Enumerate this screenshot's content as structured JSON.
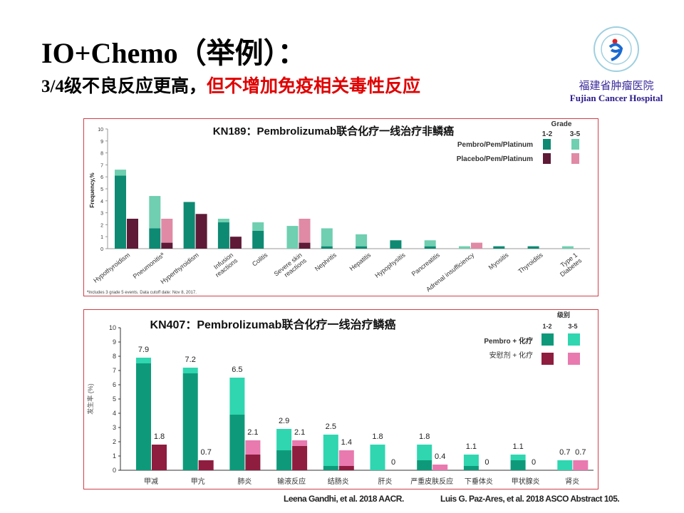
{
  "slide": {
    "title": "IO+Chemo（举例）：",
    "subtitle_black": "3/4级不良反应更高，",
    "subtitle_red": "但不增加免疫相关毒性反应",
    "logo": {
      "name_cn": "福建省肿瘤医院",
      "name_en": "Fujian Cancer Hospital",
      "seal_text": "福建省肿瘤医院"
    },
    "references": [
      "Leena Gandhi, et al. 2018 AACR.",
      "Luis G. Paz-Ares, et al. 2018 ASCO Abstract 105."
    ]
  },
  "chart_data": [
    {
      "type": "bar",
      "stacked": "grouped-stacked",
      "title": "KN189：Pembrolizumab联合化疗一线治疗非鳞癌",
      "ylabel": "Frequency,%",
      "ylim": [
        0,
        10
      ],
      "yticks": [
        "0",
        "1",
        "2",
        "3",
        "4",
        "5",
        "6",
        "7",
        "8",
        "9",
        "10"
      ],
      "legend_title": "Grade",
      "legend_grades": [
        "1-2",
        "3-5"
      ],
      "footnote": "ªIncludes 3 grade 5 events. Data cutoff date: Nov 8, 2017.",
      "categories": [
        "Hypothyroidism",
        "Pneumonitisª",
        "Hyperthyroidism",
        "Infusion reactions",
        "Colitis",
        "Severe skin reactions",
        "Nephritis",
        "Hepatitis",
        "Hypophysitis",
        "Pancreatitis",
        "Adrenal insufficiency",
        "Myositis",
        "Thyroiditis",
        "Type 1 Diabetes"
      ],
      "series": [
        {
          "name": "Pembro/Pem/Platinum",
          "grade_1_2": [
            6.1,
            1.7,
            3.9,
            2.2,
            1.5,
            0,
            0.2,
            0.2,
            0.7,
            0.2,
            0,
            0.2,
            0.2,
            0
          ],
          "grade_3_5": [
            0.5,
            2.7,
            0,
            0.3,
            0.7,
            1.9,
            1.5,
            1.0,
            0,
            0.5,
            0.2,
            0,
            0,
            0.2
          ],
          "colors": [
            "#0e8a73",
            "#6fcfb0"
          ]
        },
        {
          "name": "Placebo/Pem/Platinum",
          "grade_1_2": [
            2.5,
            0.5,
            2.9,
            1.0,
            0,
            0.5,
            0,
            0,
            0,
            0,
            0,
            0,
            0,
            0
          ],
          "grade_3_5": [
            0,
            2.0,
            0,
            0,
            0,
            2.0,
            0,
            0,
            0,
            0,
            0.5,
            0,
            0,
            0
          ],
          "colors": [
            "#5e1a36",
            "#e08aa6"
          ]
        }
      ]
    },
    {
      "type": "bar",
      "stacked": "grouped-stacked",
      "title": "KN407：Pembrolizumab联合化疗一线治疗鳞癌",
      "ylabel": "发生率 (%)",
      "ylim": [
        0,
        10
      ],
      "yticks": [
        "0",
        "1",
        "2",
        "3",
        "4",
        "5",
        "6",
        "7",
        "8",
        "9",
        "10"
      ],
      "legend_title": "级别",
      "legend_grades": [
        "1-2",
        "3-5"
      ],
      "categories": [
        "甲减",
        "甲亢",
        "肺炎",
        "输液反应",
        "结肠炎",
        "肝炎",
        "严重皮肤反应",
        "下垂体炎",
        "甲状腺炎",
        "肾炎"
      ],
      "series": [
        {
          "name": "Pembro + 化疗",
          "totals": [
            "7.9",
            "7.2",
            "6.5",
            "2.9",
            "2.5",
            "1.8",
            "1.8",
            "1.1",
            "1.1",
            "0.7"
          ],
          "grade_1_2": [
            7.5,
            6.8,
            3.9,
            1.4,
            0.3,
            0,
            0.7,
            0.3,
            0.7,
            0
          ],
          "grade_3_5": [
            0.4,
            0.4,
            2.6,
            1.5,
            2.2,
            1.8,
            1.1,
            0.8,
            0.4,
            0.7
          ],
          "colors": [
            "#0e9a7a",
            "#2fd6b0"
          ]
        },
        {
          "name": "安慰剂 + 化疗",
          "totals": [
            "1.8",
            "0.7",
            "2.1",
            "2.1",
            "1.4",
            "0",
            "0.4",
            "0",
            "0",
            "0.7"
          ],
          "grade_1_2": [
            1.8,
            0.7,
            1.1,
            1.7,
            0.3,
            0,
            0,
            0,
            0,
            0
          ],
          "grade_3_5": [
            0,
            0,
            1.0,
            0.4,
            1.1,
            0,
            0.4,
            0,
            0,
            0.7
          ],
          "colors": [
            "#8e1d40",
            "#e87aaf"
          ]
        }
      ]
    }
  ]
}
